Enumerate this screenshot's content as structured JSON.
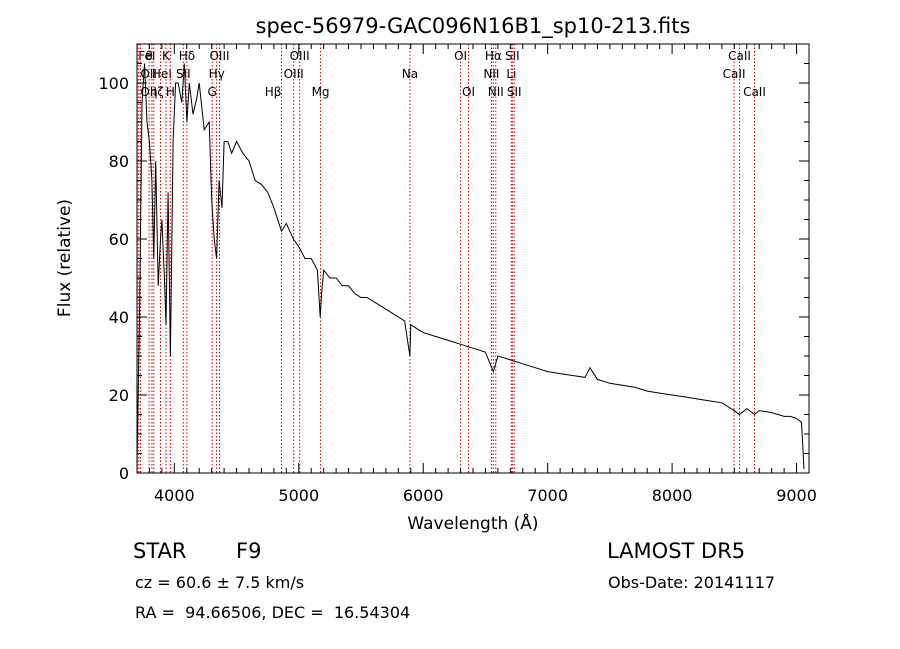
{
  "chart_data": {
    "type": "line",
    "title": "spec-56979-GAC096N16B1_sp10-213.fits",
    "xlabel": "Wavelength (Å)",
    "ylabel": "Flux (relative)",
    "xlim": [
      3700,
      9100
    ],
    "ylim": [
      0,
      110
    ],
    "x_ticks": [
      4000,
      5000,
      6000,
      7000,
      8000,
      9000
    ],
    "y_ticks": [
      0,
      20,
      40,
      60,
      80,
      100
    ],
    "grid": false,
    "colors": {
      "spectrum": "#000000",
      "lines": "#cc0000",
      "axes": "#000000"
    },
    "series": [
      {
        "x": [
          3700,
          3720,
          3740,
          3760,
          3780,
          3800,
          3820,
          3835,
          3850,
          3870,
          3889,
          3900,
          3920,
          3933,
          3950,
          3968,
          3990,
          4010,
          4030,
          4060,
          4080,
          4101,
          4120,
          4150,
          4180,
          4200,
          4240,
          4280,
          4300,
          4320,
          4340,
          4360,
          4383,
          4400,
          4430,
          4460,
          4500,
          4550,
          4600,
          4650,
          4700,
          4750,
          4800,
          4861,
          4900,
          4957,
          5000,
          5050,
          5100,
          5150,
          5172,
          5183,
          5200,
          5250,
          5300,
          5350,
          5400,
          5450,
          5500,
          5550,
          5600,
          5650,
          5700,
          5750,
          5800,
          5850,
          5893,
          5900,
          5950,
          6000,
          6100,
          6200,
          6300,
          6400,
          6500,
          6563,
          6600,
          6700,
          6800,
          6900,
          7000,
          7100,
          7200,
          7300,
          7340,
          7400,
          7500,
          7600,
          7700,
          7800,
          7900,
          8000,
          8100,
          8200,
          8300,
          8400,
          8498,
          8542,
          8600,
          8662,
          8700,
          8800,
          8900,
          8950,
          9000,
          9040,
          9060
        ],
        "y": [
          2,
          40,
          95,
          105,
          90,
          85,
          75,
          55,
          80,
          48,
          60,
          65,
          50,
          38,
          72,
          30,
          85,
          100,
          100,
          95,
          105,
          90,
          100,
          92,
          96,
          100,
          88,
          90,
          70,
          60,
          55,
          75,
          68,
          85,
          85,
          82,
          85,
          82,
          80,
          75,
          74,
          72,
          68,
          62,
          64,
          60,
          58,
          55,
          55,
          52,
          40,
          46,
          52,
          50,
          50,
          48,
          48,
          46,
          45,
          45,
          44,
          43,
          42,
          41,
          40,
          39,
          30,
          38,
          37,
          36,
          35,
          34,
          33,
          32,
          31,
          26,
          30,
          29,
          28,
          27,
          26,
          25.5,
          25,
          24.5,
          27,
          24,
          23,
          22.5,
          22,
          21,
          20.5,
          20,
          19.5,
          19,
          18.5,
          18,
          16,
          15,
          16.5,
          15,
          16,
          15.5,
          14.5,
          14.5,
          14,
          13,
          1
        ]
      }
    ],
    "lines": [
      {
        "label": "FeI",
        "x": 3710,
        "row": 0,
        "align": "start"
      },
      {
        "label": "OII",
        "x": 3727,
        "row": 1,
        "align": "start"
      },
      {
        "label": "OII",
        "x": 3727,
        "row": 2,
        "align": "start"
      },
      {
        "label": "θ",
        "x": 3797,
        "row": 0,
        "align": "middle"
      },
      {
        "label": "HeI",
        "x": 3820,
        "row": 1,
        "align": "start"
      },
      {
        "label": "η",
        "x": 3835,
        "row": 2,
        "align": "middle"
      },
      {
        "label": "ζ",
        "x": 3889,
        "row": 2,
        "align": "middle"
      },
      {
        "label": "K",
        "x": 3933,
        "row": 0,
        "align": "middle"
      },
      {
        "label": "H",
        "x": 3968,
        "row": 2,
        "align": "middle"
      },
      {
        "label": "SII",
        "x": 4072,
        "row": 1,
        "align": "middle"
      },
      {
        "label": "Hδ",
        "x": 4101,
        "row": 0,
        "align": "middle"
      },
      {
        "label": "G",
        "x": 4304,
        "row": 2,
        "align": "middle"
      },
      {
        "label": "OIII",
        "x": 4363,
        "row": 0,
        "align": "middle"
      },
      {
        "label": "Hγ",
        "x": 4340,
        "row": 1,
        "align": "middle"
      },
      {
        "label": "Hβ",
        "x": 4861,
        "row": 2,
        "align": "end"
      },
      {
        "label": "OIII",
        "x": 4959,
        "row": 1,
        "align": "middle"
      },
      {
        "label": "OIII",
        "x": 5007,
        "row": 0,
        "align": "middle"
      },
      {
        "label": "Mg",
        "x": 5175,
        "row": 2,
        "align": "middle"
      },
      {
        "label": "Na",
        "x": 5893,
        "row": 1,
        "align": "middle"
      },
      {
        "label": "OI",
        "x": 6300,
        "row": 0,
        "align": "middle"
      },
      {
        "label": "OI",
        "x": 6364,
        "row": 2,
        "align": "middle"
      },
      {
        "label": "NII",
        "x": 6548,
        "row": 1,
        "align": "middle"
      },
      {
        "label": "Hα",
        "x": 6563,
        "row": 0,
        "align": "middle"
      },
      {
        "label": "NII",
        "x": 6583,
        "row": 2,
        "align": "middle"
      },
      {
        "label": "Li",
        "x": 6708,
        "row": 1,
        "align": "middle"
      },
      {
        "label": "SII",
        "x": 6716,
        "row": 0,
        "align": "middle"
      },
      {
        "label": "SII",
        "x": 6731,
        "row": 2,
        "align": "middle"
      },
      {
        "label": "CaII",
        "x": 8498,
        "row": 1,
        "align": "middle"
      },
      {
        "label": "CaII",
        "x": 8542,
        "row": 0,
        "align": "middle"
      },
      {
        "label": "CaII",
        "x": 8662,
        "row": 2,
        "align": "middle"
      }
    ]
  },
  "info": {
    "class": "STAR",
    "subclass": "F9",
    "survey": "LAMOST DR5",
    "cz": "cz = 60.6 ± 7.5 km/s",
    "obs_date": "Obs-Date: 20141117",
    "coords": "RA =  94.66506, DEC =  16.54304"
  }
}
